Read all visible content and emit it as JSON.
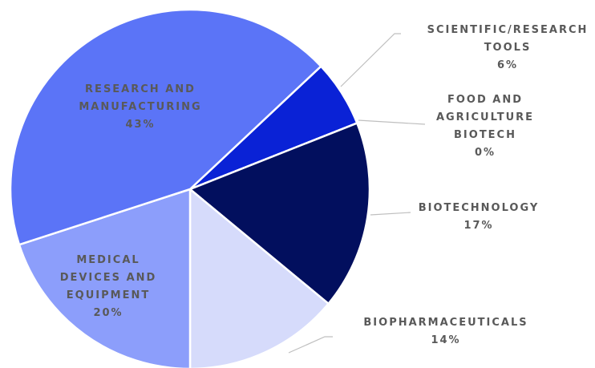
{
  "chart_data": {
    "type": "pie",
    "categories": [
      "SCIENTIFIC/RESEARCH TOOLS",
      "FOOD AND AGRICULTURE BIOTECH",
      "BIOTECHNOLOGY",
      "BIOPHARMACEUTICALS",
      "MEDICAL DEVICES AND EQUIPMENT",
      "RESEARCH AND MANUFACTURING"
    ],
    "values": [
      6,
      0,
      17,
      14,
      20,
      43
    ],
    "value_labels": [
      "6%",
      "0%",
      "17%",
      "14%",
      "20%",
      "43%"
    ],
    "colors": [
      "#0a22d6",
      "#1a2fc0",
      "#020f5e",
      "#d6dbfb",
      "#8c9efb",
      "#5b74f7"
    ],
    "start_angle": 46.8
  }
}
